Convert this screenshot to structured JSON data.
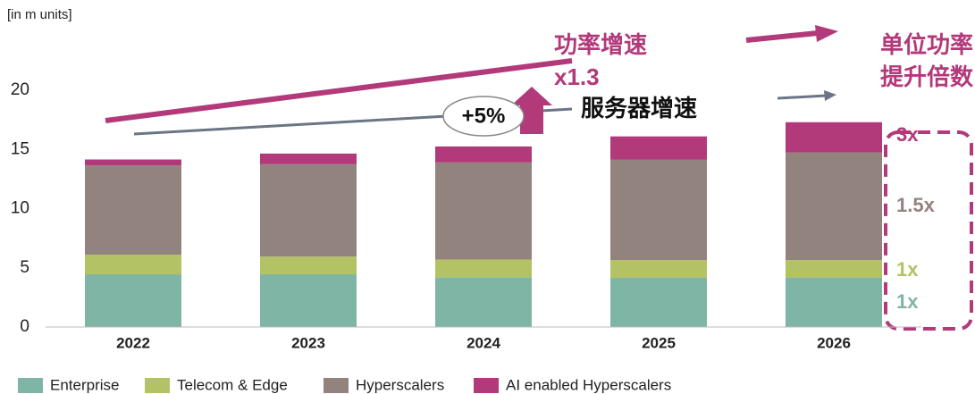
{
  "chart_data": {
    "type": "stacked_bar",
    "unit_label": "[in m units]",
    "categories": [
      "2022",
      "2023",
      "2024",
      "2025",
      "2026"
    ],
    "series": [
      {
        "name": "Enterprise",
        "color": "#7fb5a5",
        "values": [
          4.45,
          4.45,
          4.2,
          4.15,
          4.15
        ]
      },
      {
        "name": "Telecom & Edge",
        "color": "#b3c264",
        "values": [
          1.65,
          1.5,
          1.5,
          1.5,
          1.5
        ]
      },
      {
        "name": "Hyperscalers",
        "color": "#93837f",
        "values": [
          7.55,
          7.8,
          8.2,
          8.5,
          9.1
        ]
      },
      {
        "name": "AI enabled Hyperscalers",
        "color": "#b2397a",
        "values": [
          0.5,
          0.9,
          1.35,
          1.95,
          2.55
        ]
      }
    ],
    "ylim": [
      0,
      20
    ],
    "yticks": [
      0,
      5,
      10,
      15,
      20
    ],
    "annotations": [
      "功率增速",
      "x1.3",
      "服务器增速",
      "+5%",
      "单位功率",
      "提升倍数"
    ],
    "multipliers": [
      "3x",
      "1.5x",
      "1x",
      "1x"
    ]
  }
}
